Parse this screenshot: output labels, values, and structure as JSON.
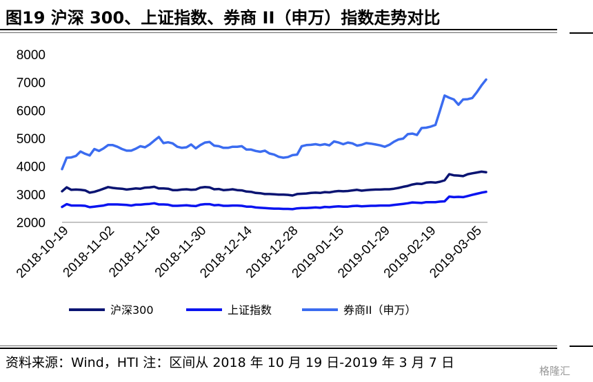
{
  "page": {
    "title": "图19 沪深 300、上证指数、券商 II（申万）指数走势对比",
    "source": "资料来源：Wind，HTI 注：区间从 2018 年 10 月 19 日-2019 年 3 月 7 日",
    "watermark": "格隆汇"
  },
  "chart_data": {
    "type": "line",
    "title": "",
    "xlabel": "",
    "ylabel": "",
    "ylim": [
      2000,
      8000
    ],
    "yticks": [
      2000,
      3000,
      4000,
      5000,
      6000,
      7000,
      8000
    ],
    "xticks": [
      "2018-10-19",
      "2018-11-02",
      "2018-11-16",
      "2018-11-30",
      "2018-12-14",
      "2018-12-28",
      "2019-01-15",
      "2019-01-29",
      "2019-02-19",
      "2019-03-05"
    ],
    "grid": false,
    "legend": "bottom",
    "colors": {
      "hs300": "#0a1472",
      "sh": "#0a14f0",
      "broker": "#3b6cf0"
    },
    "series": [
      {
        "name": "沪深300",
        "key": "hs300",
        "values": [
          3110,
          3250,
          3160,
          3170,
          3160,
          3140,
          3060,
          3090,
          3140,
          3200,
          3260,
          3230,
          3210,
          3200,
          3170,
          3190,
          3210,
          3200,
          3240,
          3250,
          3270,
          3210,
          3210,
          3200,
          3150,
          3150,
          3170,
          3180,
          3160,
          3170,
          3240,
          3260,
          3250,
          3180,
          3190,
          3150,
          3160,
          3180,
          3150,
          3140,
          3100,
          3090,
          3050,
          3040,
          3010,
          3010,
          3000,
          2990,
          2990,
          2980,
          2960,
          3010,
          3020,
          3030,
          3050,
          3060,
          3050,
          3080,
          3070,
          3100,
          3120,
          3110,
          3120,
          3140,
          3160,
          3130,
          3150,
          3160,
          3170,
          3170,
          3180,
          3180,
          3200,
          3230,
          3270,
          3300,
          3350,
          3380,
          3370,
          3420,
          3430,
          3420,
          3450,
          3500,
          3720,
          3680,
          3670,
          3650,
          3720,
          3750,
          3780,
          3810,
          3790
        ]
      },
      {
        "name": "上证指数",
        "key": "sh",
        "values": [
          2550,
          2650,
          2600,
          2600,
          2600,
          2590,
          2540,
          2560,
          2580,
          2600,
          2640,
          2640,
          2640,
          2630,
          2620,
          2600,
          2630,
          2630,
          2650,
          2660,
          2680,
          2640,
          2640,
          2630,
          2590,
          2590,
          2600,
          2610,
          2590,
          2580,
          2630,
          2650,
          2650,
          2610,
          2620,
          2590,
          2590,
          2600,
          2600,
          2590,
          2560,
          2560,
          2530,
          2520,
          2510,
          2500,
          2490,
          2490,
          2480,
          2480,
          2470,
          2500,
          2510,
          2510,
          2520,
          2530,
          2520,
          2550,
          2540,
          2560,
          2570,
          2560,
          2560,
          2580,
          2590,
          2570,
          2580,
          2590,
          2590,
          2600,
          2600,
          2600,
          2620,
          2640,
          2660,
          2680,
          2710,
          2700,
          2690,
          2720,
          2720,
          2720,
          2740,
          2750,
          2920,
          2900,
          2910,
          2900,
          2940,
          2980,
          3020,
          3060,
          3090
        ]
      },
      {
        "name": "券商II（申万）",
        "key": "broker",
        "values": [
          3900,
          4310,
          4320,
          4370,
          4530,
          4450,
          4390,
          4620,
          4550,
          4640,
          4760,
          4760,
          4700,
          4620,
          4560,
          4560,
          4630,
          4720,
          4680,
          4780,
          4920,
          5050,
          4830,
          4860,
          4820,
          4700,
          4660,
          4680,
          4780,
          4640,
          4760,
          4850,
          4870,
          4740,
          4720,
          4660,
          4660,
          4700,
          4700,
          4720,
          4600,
          4600,
          4550,
          4520,
          4560,
          4460,
          4420,
          4340,
          4310,
          4330,
          4400,
          4420,
          4720,
          4760,
          4770,
          4790,
          4760,
          4790,
          4750,
          4890,
          4850,
          4790,
          4850,
          4820,
          4740,
          4770,
          4830,
          4810,
          4780,
          4750,
          4700,
          4770,
          4880,
          4960,
          4990,
          5150,
          5170,
          5120,
          5370,
          5380,
          5420,
          5480,
          6000,
          6530,
          6450,
          6390,
          6200,
          6390,
          6400,
          6440,
          6650,
          6890,
          7100
        ]
      }
    ]
  }
}
